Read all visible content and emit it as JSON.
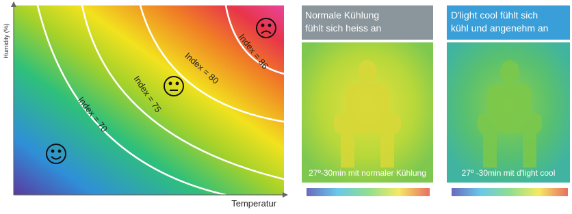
{
  "axes": {
    "y_label": "Humidity (%)",
    "x_label": "Temperatur"
  },
  "index_labels": [
    "Index = 70",
    "Index = 75",
    "Index = 80",
    "Index = 86"
  ],
  "panels": [
    {
      "title": [
        "Normale Kühlung",
        "fühlt sich heiss an"
      ],
      "caption": "27º-30min mit normaler Kühlung"
    },
    {
      "title": [
        "D'light cool fühlt sich",
        "kühl und angenehm an"
      ],
      "caption": "27º -30min mit d'light cool"
    }
  ]
}
